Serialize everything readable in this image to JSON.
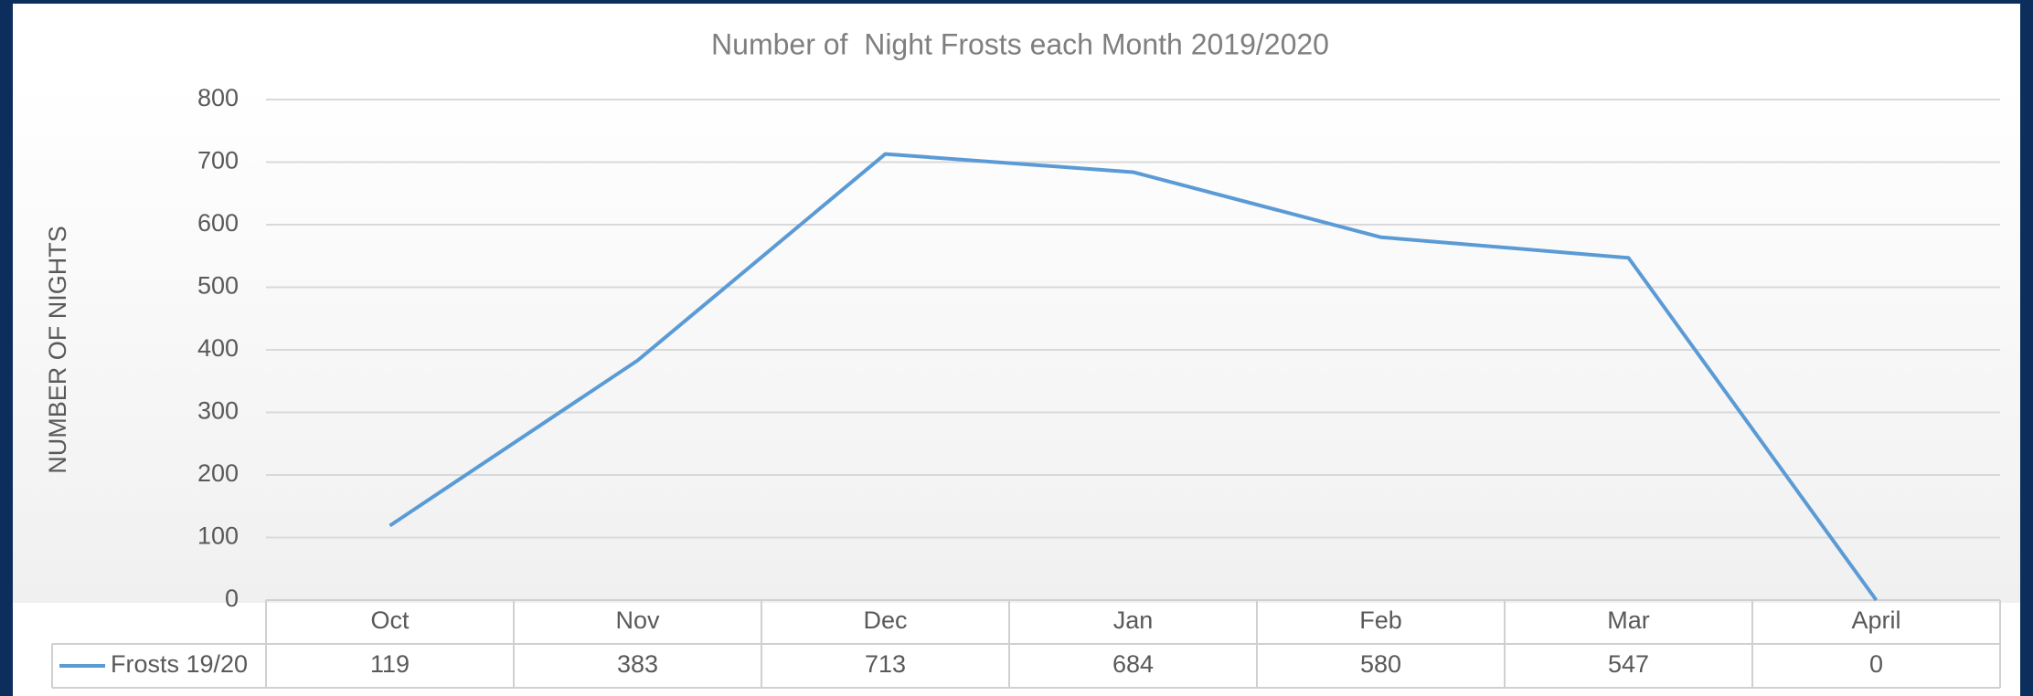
{
  "chart_data": {
    "type": "line",
    "title": "Number of  Night Frosts each Month 2019/2020",
    "y_label": "NUMBER OF NIGHTS",
    "categories": [
      "Oct",
      "Nov",
      "Dec",
      "Jan",
      "Feb",
      "Mar",
      "April"
    ],
    "series": [
      {
        "name": "Frosts 19/20",
        "color": "#5b9bd5",
        "values": [
          119,
          383,
          713,
          684,
          580,
          547,
          0
        ]
      }
    ],
    "ylim": [
      0,
      800
    ],
    "yticks": [
      0,
      100,
      200,
      300,
      400,
      500,
      600,
      700,
      800
    ],
    "grid": true,
    "data_table": true
  }
}
